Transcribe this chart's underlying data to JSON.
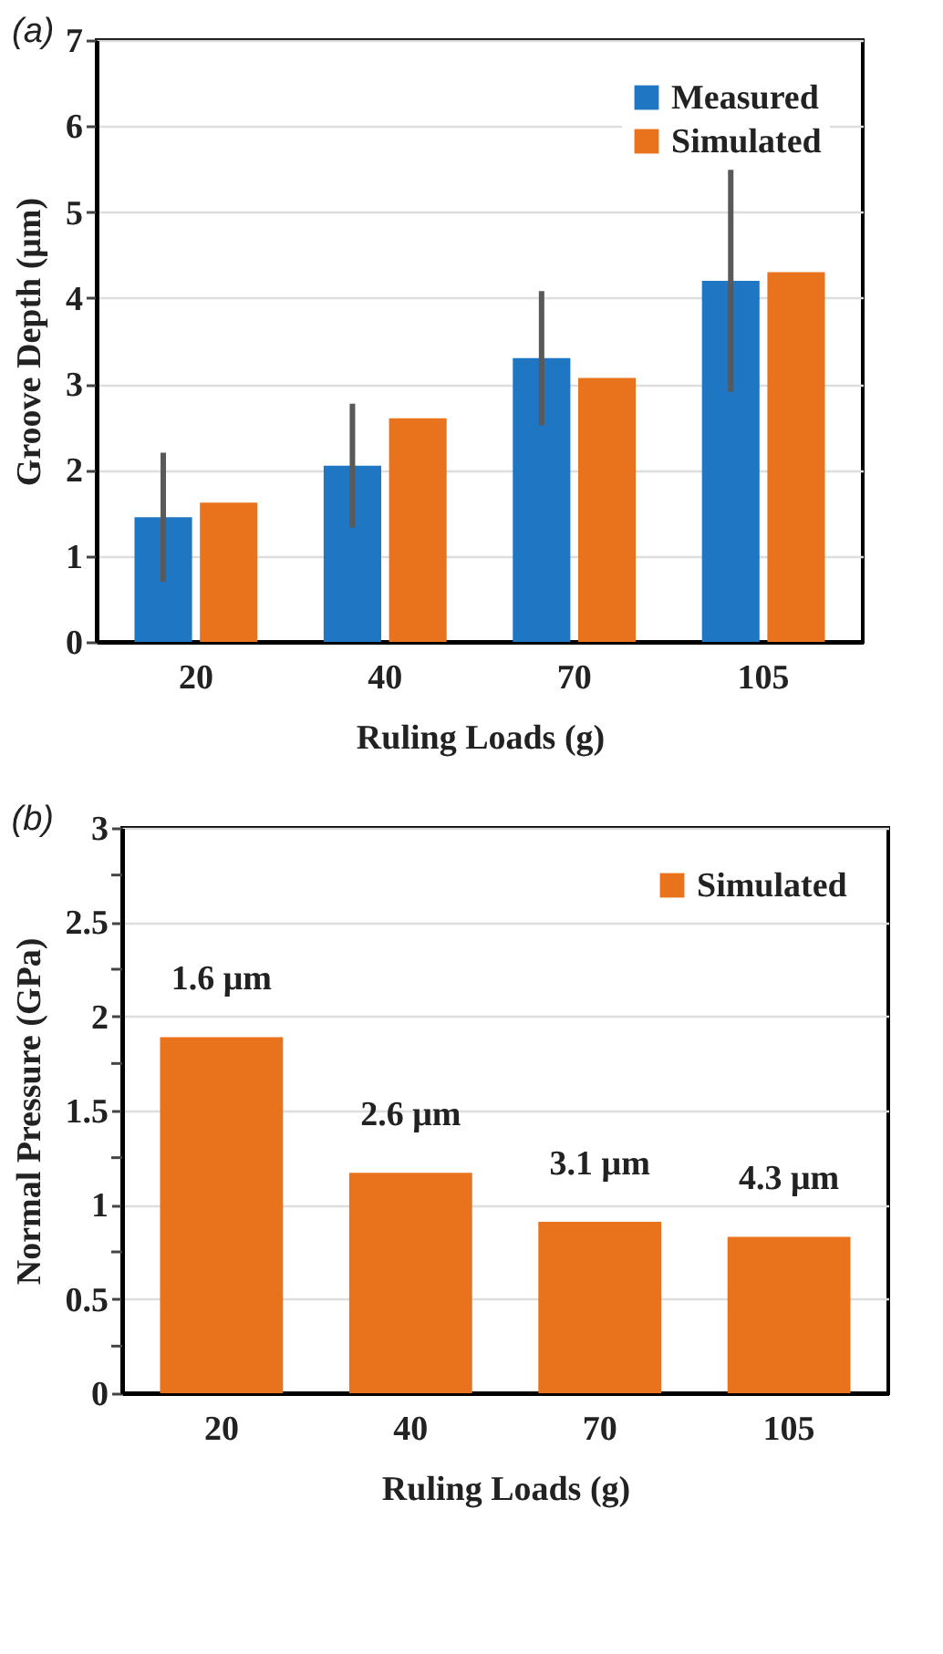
{
  "chart_data": [
    {
      "type": "bar",
      "annotations": [
        "(a)"
      ],
      "xlabel": "Ruling Loads (g)",
      "ylabel": "Groove Depth (μm)",
      "categories": [
        "20",
        "40",
        "70",
        "105"
      ],
      "series": [
        {
          "name": "Measured",
          "color": "#1f77c4",
          "values": [
            1.45,
            2.05,
            3.3,
            4.2
          ],
          "errors": [
            0.75,
            0.72,
            0.78,
            1.29
          ]
        },
        {
          "name": "Simulated",
          "color": "#e8731c",
          "values": [
            1.62,
            2.6,
            3.07,
            4.3
          ]
        }
      ],
      "ylim": [
        0,
        7
      ],
      "yticks": [
        0,
        1,
        2,
        3,
        4,
        5,
        6,
        7
      ],
      "grid": "y",
      "legend": "top right"
    },
    {
      "type": "bar",
      "xlabel": "Ruling Loads (g)",
      "ylabel": "Normal Pressure (GPa)",
      "annotations": [
        "(b)",
        {
          "text": "1.6 μm",
          "x": "20",
          "y": 1.89
        },
        {
          "text": "2.6 μm",
          "x": "40",
          "y": 1.17
        },
        {
          "text": "3.1 μm",
          "x": "70",
          "y": 0.91
        },
        {
          "text": "4.3 μm",
          "x": "105",
          "y": 0.83
        }
      ],
      "categories": [
        "20",
        "40",
        "70",
        "105"
      ],
      "series": [
        {
          "name": "Simulated",
          "color": "#e8731c",
          "values": [
            1.89,
            1.17,
            0.91,
            0.83
          ]
        }
      ],
      "ylim": [
        0,
        3
      ],
      "yticks": [
        0,
        {
          "value": 0.25,
          "label": null
        },
        0.5,
        {
          "value": 0.75,
          "label": null
        },
        1,
        {
          "value": 1.25,
          "label": null
        },
        1.5,
        {
          "value": 1.75,
          "label": null
        },
        2,
        {
          "value": 2.25,
          "label": null
        },
        2.5,
        {
          "value": 2.75,
          "label": null
        },
        3
      ],
      "grid": "y",
      "legend": "top right"
    }
  ]
}
